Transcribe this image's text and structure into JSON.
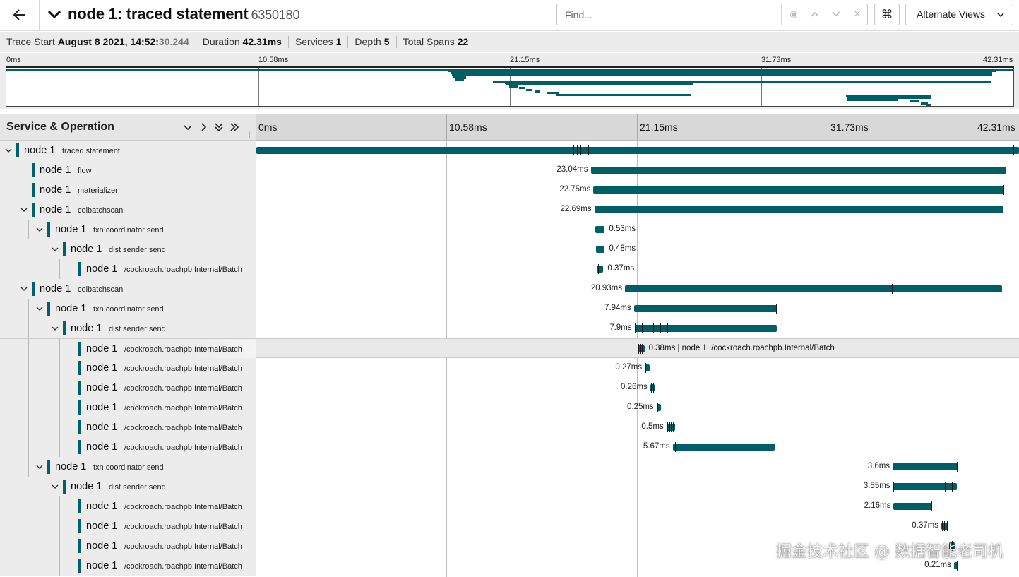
{
  "header": {
    "back_icon": "arrow-left-icon",
    "service": "node 1:",
    "operation": "traced statement",
    "trace_id": "6350180",
    "find_placeholder": "Find...",
    "alt_views_label": "Alternate Views"
  },
  "summary": {
    "trace_start_label": "Trace Start",
    "trace_start_date": "August 8 2021, 14:52:",
    "trace_start_ms": "30.244",
    "duration_label": "Duration",
    "duration_value": "42.31ms",
    "services_label": "Services",
    "services_value": "1",
    "depth_label": "Depth",
    "depth_value": "5",
    "total_spans_label": "Total Spans",
    "total_spans_value": "22"
  },
  "timeline": {
    "total_ms": 42.31,
    "ticks": [
      "0ms",
      "10.58ms",
      "21.15ms",
      "31.73ms",
      "42.31ms"
    ],
    "column_header": "Service & Operation"
  },
  "colors": {
    "span": "#005e66",
    "service_marker": "#00616b"
  },
  "spans": [
    {
      "depth": 0,
      "service": "node 1",
      "op": "traced statement",
      "toggle": true,
      "start": 0.0,
      "dur": 42.31,
      "label": "",
      "logs": [
        5.3,
        17.6,
        17.8,
        18.0,
        18.2,
        18.4,
        41.7,
        42.0
      ]
    },
    {
      "depth": 1,
      "service": "node 1",
      "op": "flow",
      "toggle": false,
      "start": 18.55,
      "dur": 23.04,
      "label": "23.04ms",
      "logs": [
        18.6,
        41.55
      ]
    },
    {
      "depth": 1,
      "service": "node 1",
      "op": "materializer",
      "toggle": false,
      "start": 18.7,
      "dur": 22.75,
      "label": "22.75ms",
      "logs": [
        41.3,
        41.45
      ]
    },
    {
      "depth": 1,
      "service": "node 1",
      "op": "colbatchscan",
      "toggle": true,
      "start": 18.75,
      "dur": 22.69,
      "label": "22.69ms",
      "logs": []
    },
    {
      "depth": 2,
      "service": "node 1",
      "op": "txn coordinator send",
      "toggle": true,
      "start": 18.8,
      "dur": 0.53,
      "label": "0.53ms",
      "labelRight": true,
      "logs": []
    },
    {
      "depth": 3,
      "service": "node 1",
      "op": "dist sender send",
      "toggle": true,
      "start": 18.85,
      "dur": 0.48,
      "label": "0.48ms",
      "labelRight": true,
      "logs": [
        18.9
      ]
    },
    {
      "depth": 4,
      "service": "node 1",
      "op": "/cockroach.roachpb.Internal/Batch",
      "toggle": false,
      "start": 18.88,
      "dur": 0.37,
      "label": "0.37ms",
      "labelRight": true,
      "logs": [
        18.95,
        19.05,
        19.15
      ]
    },
    {
      "depth": 1,
      "service": "node 1",
      "op": "colbatchscan",
      "toggle": true,
      "start": 20.45,
      "dur": 20.93,
      "label": "20.93ms",
      "logs": [
        35.25
      ]
    },
    {
      "depth": 2,
      "service": "node 1",
      "op": "txn coordinator send",
      "toggle": true,
      "start": 20.95,
      "dur": 7.94,
      "label": "7.94ms",
      "logs": [
        28.85
      ]
    },
    {
      "depth": 3,
      "service": "node 1",
      "op": "dist sender send",
      "toggle": true,
      "start": 20.98,
      "dur": 7.9,
      "label": "7.9ms",
      "logs": [
        21.0,
        21.4,
        21.7,
        22.0,
        22.4,
        22.8,
        23.3
      ]
    },
    {
      "depth": 4,
      "service": "node 1",
      "op": "/cockroach.roachpb.Internal/Batch",
      "toggle": false,
      "start": 21.15,
      "dur": 0.38,
      "label": "0.38ms | node 1::/cockroach.roachpb.Internal/Batch",
      "labelRight": true,
      "highlight": true,
      "logs": [
        21.2,
        21.3,
        21.4
      ]
    },
    {
      "depth": 4,
      "service": "node 1",
      "op": "/cockroach.roachpb.Internal/Batch",
      "toggle": false,
      "start": 21.55,
      "dur": 0.27,
      "label": "0.27ms",
      "logs": [
        21.6,
        21.7
      ]
    },
    {
      "depth": 4,
      "service": "node 1",
      "op": "/cockroach.roachpb.Internal/Batch",
      "toggle": false,
      "start": 21.85,
      "dur": 0.26,
      "label": "0.26ms",
      "logs": [
        21.9,
        22.0
      ]
    },
    {
      "depth": 4,
      "service": "node 1",
      "op": "/cockroach.roachpb.Internal/Batch",
      "toggle": false,
      "start": 22.2,
      "dur": 0.25,
      "label": "0.25ms",
      "logs": [
        22.25,
        22.35
      ]
    },
    {
      "depth": 4,
      "service": "node 1",
      "op": "/cockroach.roachpb.Internal/Batch",
      "toggle": false,
      "start": 22.75,
      "dur": 0.5,
      "label": "0.5ms",
      "logs": [
        22.8,
        22.9,
        23.0,
        23.1
      ]
    },
    {
      "depth": 4,
      "service": "node 1",
      "op": "/cockroach.roachpb.Internal/Batch",
      "toggle": false,
      "start": 23.1,
      "dur": 5.67,
      "label": "5.67ms",
      "logs": [
        23.15,
        23.25,
        28.75
      ]
    },
    {
      "depth": 2,
      "service": "node 1",
      "op": "txn coordinator send",
      "toggle": true,
      "start": 35.3,
      "dur": 3.6,
      "label": "3.6ms",
      "logs": [
        38.85
      ]
    },
    {
      "depth": 3,
      "service": "node 1",
      "op": "dist sender send",
      "toggle": true,
      "start": 35.32,
      "dur": 3.55,
      "label": "3.55ms",
      "logs": [
        35.35,
        37.3,
        37.8,
        38.2,
        38.6
      ]
    },
    {
      "depth": 4,
      "service": "node 1",
      "op": "/cockroach.roachpb.Internal/Batch",
      "toggle": false,
      "start": 35.35,
      "dur": 2.16,
      "label": "2.16ms",
      "logs": [
        35.4,
        37.45
      ]
    },
    {
      "depth": 4,
      "service": "node 1",
      "op": "/cockroach.roachpb.Internal/Batch",
      "toggle": false,
      "start": 38.0,
      "dur": 0.37,
      "label": "0.37ms",
      "logs": [
        38.05,
        38.15,
        38.3
      ]
    },
    {
      "depth": 4,
      "service": "node 1",
      "op": "/cockroach.roachpb.Internal/Batch",
      "toggle": false,
      "start": 38.45,
      "dur": 0.3,
      "label": "",
      "logs": [
        38.5,
        38.6
      ]
    },
    {
      "depth": 4,
      "service": "node 1",
      "op": "/cockroach.roachpb.Internal/Batch",
      "toggle": false,
      "start": 38.7,
      "dur": 0.21,
      "label": "0.21ms",
      "logs": [
        38.75,
        38.85
      ]
    }
  ],
  "watermark": "掘金技术社区 @ 数据智能老司机"
}
